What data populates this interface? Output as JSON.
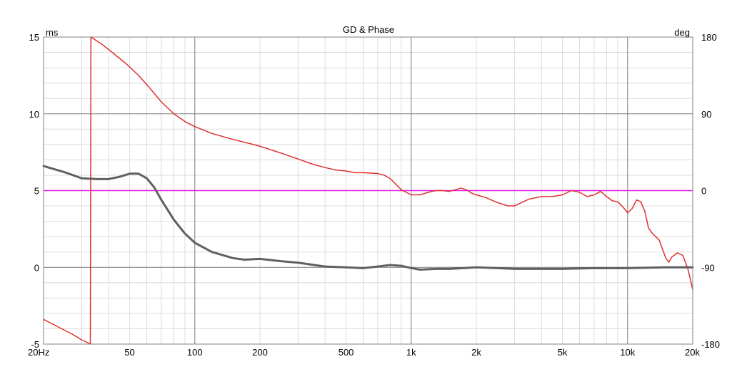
{
  "chart_data": {
    "type": "line",
    "title": "GD & Phase",
    "xlabel": "",
    "ylabel_left_unit": "ms",
    "ylabel_right_unit": "deg",
    "x_scale": "log",
    "xlim": [
      20,
      20000
    ],
    "ylim_left": [
      -5,
      15
    ],
    "ylim_right": [
      -180,
      180
    ],
    "grid": true,
    "x_tick_labels": [
      {
        "v": 20,
        "label": "20Hz"
      },
      {
        "v": 50,
        "label": "50"
      },
      {
        "v": 100,
        "label": "100"
      },
      {
        "v": 200,
        "label": "200"
      },
      {
        "v": 500,
        "label": "500"
      },
      {
        "v": 1000,
        "label": "1k"
      },
      {
        "v": 2000,
        "label": "2k"
      },
      {
        "v": 5000,
        "label": "5k"
      },
      {
        "v": 10000,
        "label": "10k"
      },
      {
        "v": 20000,
        "label": "20k"
      }
    ],
    "y_left_ticks": [
      {
        "v": 15,
        "label": "15"
      },
      {
        "v": 10,
        "label": "10"
      },
      {
        "v": 5,
        "label": "5"
      },
      {
        "v": 0,
        "label": "0"
      },
      {
        "v": -5,
        "label": "-5"
      }
    ],
    "y_right_ticks": [
      {
        "v": 180,
        "label": "180"
      },
      {
        "v": 90,
        "label": "90"
      },
      {
        "v": 0,
        "label": "0"
      },
      {
        "v": -90,
        "label": "-90"
      },
      {
        "v": -180,
        "label": "-180"
      }
    ],
    "reference_line": {
      "axis": "left",
      "value": 5,
      "color": "#e020e0"
    },
    "series": [
      {
        "axis": "right",
        "color": "#e03030",
        "points": [
          [
            20,
            -151
          ],
          [
            23,
            -159
          ],
          [
            27,
            -168
          ],
          [
            30,
            -175
          ],
          [
            32.9,
            -180
          ],
          [
            33.1,
            180
          ],
          [
            37,
            172
          ],
          [
            42,
            161
          ],
          [
            48,
            149
          ],
          [
            55,
            135
          ],
          [
            62,
            120
          ],
          [
            70,
            104
          ],
          [
            80,
            90
          ],
          [
            90,
            81
          ],
          [
            100,
            75
          ],
          [
            120,
            67
          ],
          [
            150,
            60
          ],
          [
            180,
            55
          ],
          [
            200,
            52
          ],
          [
            250,
            44
          ],
          [
            300,
            37
          ],
          [
            350,
            31
          ],
          [
            400,
            27
          ],
          [
            450,
            24
          ],
          [
            500,
            23
          ],
          [
            550,
            21
          ],
          [
            600,
            21
          ],
          [
            700,
            20
          ],
          [
            750,
            18
          ],
          [
            800,
            14
          ],
          [
            900,
            1
          ],
          [
            1000,
            -5
          ],
          [
            1100,
            -5
          ],
          [
            1200,
            -2
          ],
          [
            1300,
            0
          ],
          [
            1400,
            0
          ],
          [
            1500,
            -1
          ],
          [
            1600,
            1
          ],
          [
            1700,
            3
          ],
          [
            1800,
            1
          ],
          [
            1900,
            -3
          ],
          [
            2000,
            -5
          ],
          [
            2200,
            -8
          ],
          [
            2500,
            -14
          ],
          [
            2800,
            -18
          ],
          [
            3000,
            -18
          ],
          [
            3500,
            -10
          ],
          [
            4000,
            -7
          ],
          [
            4500,
            -7
          ],
          [
            5000,
            -5
          ],
          [
            5500,
            0
          ],
          [
            6000,
            -2
          ],
          [
            6500,
            -7
          ],
          [
            7000,
            -5
          ],
          [
            7500,
            -1
          ],
          [
            8000,
            -7
          ],
          [
            8500,
            -12
          ],
          [
            9000,
            -13
          ],
          [
            9500,
            -19
          ],
          [
            10000,
            -26
          ],
          [
            10500,
            -21
          ],
          [
            11000,
            -11
          ],
          [
            11500,
            -13
          ],
          [
            12000,
            -24
          ],
          [
            12500,
            -44
          ],
          [
            13000,
            -50
          ],
          [
            14000,
            -58
          ],
          [
            15000,
            -79
          ],
          [
            15500,
            -84
          ],
          [
            16000,
            -78
          ],
          [
            17000,
            -73
          ],
          [
            18000,
            -76
          ],
          [
            19000,
            -92
          ],
          [
            20000,
            -116
          ]
        ]
      },
      {
        "axis": "left",
        "color": "#606060",
        "points": [
          [
            20,
            6.6
          ],
          [
            25,
            6.2
          ],
          [
            30,
            5.8
          ],
          [
            35,
            5.75
          ],
          [
            40,
            5.75
          ],
          [
            45,
            5.9
          ],
          [
            50,
            6.1
          ],
          [
            55,
            6.1
          ],
          [
            60,
            5.8
          ],
          [
            65,
            5.2
          ],
          [
            70,
            4.4
          ],
          [
            80,
            3.1
          ],
          [
            90,
            2.2
          ],
          [
            100,
            1.6
          ],
          [
            120,
            1.0
          ],
          [
            150,
            0.6
          ],
          [
            170,
            0.5
          ],
          [
            200,
            0.55
          ],
          [
            250,
            0.4
          ],
          [
            300,
            0.3
          ],
          [
            400,
            0.05
          ],
          [
            500,
            0.0
          ],
          [
            600,
            -0.05
          ],
          [
            700,
            0.05
          ],
          [
            800,
            0.15
          ],
          [
            900,
            0.1
          ],
          [
            1000,
            -0.05
          ],
          [
            1100,
            -0.15
          ],
          [
            1300,
            -0.1
          ],
          [
            1500,
            -0.1
          ],
          [
            2000,
            0.0
          ],
          [
            2500,
            -0.05
          ],
          [
            3000,
            -0.1
          ],
          [
            5000,
            -0.1
          ],
          [
            7000,
            -0.05
          ],
          [
            10000,
            -0.05
          ],
          [
            15000,
            0.0
          ],
          [
            20000,
            0.0
          ]
        ]
      }
    ]
  }
}
